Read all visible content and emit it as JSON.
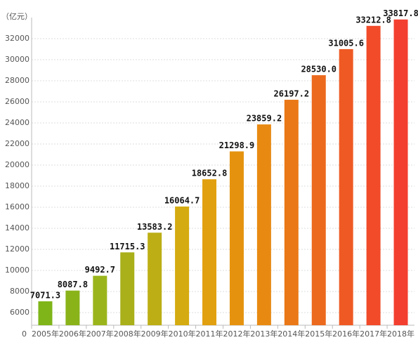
{
  "chart_data": {
    "type": "bar",
    "y_label": "（亿元）",
    "axis_origin_label": "0",
    "categories": [
      "2005年",
      "2006年",
      "2007年",
      "2008年",
      "2009年",
      "2010年",
      "2011年",
      "2012年",
      "2013年",
      "2014年",
      "2015年",
      "2016年",
      "2017年",
      "2018年"
    ],
    "values": [
      7071.3,
      8087.8,
      9492.7,
      11715.3,
      13583.2,
      16064.7,
      18652.8,
      21298.9,
      23859.2,
      26197.2,
      28530.0,
      31005.6,
      33212.8,
      33817.8
    ],
    "value_labels": [
      "7071.3",
      "8087.8",
      "9492.7",
      "11715.3",
      "13583.2",
      "16064.7",
      "18652.8",
      "21298.9",
      "23859.2",
      "26197.2",
      "28530.0",
      "31005.6",
      "33212.8",
      "33817.8"
    ],
    "colors": [
      "#7fb519",
      "#8ab31a",
      "#9ab51b",
      "#a9b01a",
      "#bcae14",
      "#d4ab10",
      "#e1a010",
      "#e5930f",
      "#e88a12",
      "#ea7817",
      "#ec6a1e",
      "#ef5a24",
      "#f14b2a",
      "#f33f2f"
    ],
    "ylim": [
      4800,
      34000
    ],
    "yticks": [
      6000,
      8000,
      10000,
      12000,
      14000,
      16000,
      18000,
      20000,
      22000,
      24000,
      26000,
      28000,
      30000,
      32000
    ],
    "grid": true
  }
}
